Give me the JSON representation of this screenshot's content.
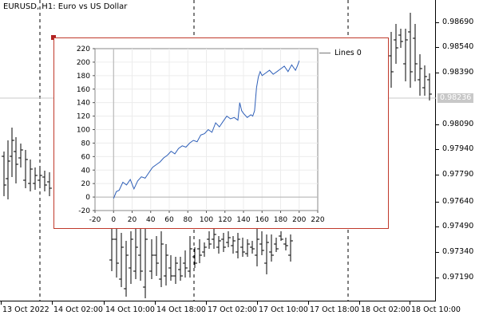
{
  "window": {
    "title": "EURUSD, H1:  Euro vs US Dollar"
  },
  "price_axis": {
    "labels": [
      "0.98690",
      "0.98540",
      "0.98390",
      "0.98236",
      "0.98090",
      "0.97940",
      "0.97790",
      "0.97640",
      "0.97490",
      "0.97340",
      "0.97190"
    ],
    "current_price": "0.98236",
    "current_price_color": "#c8c8c8"
  },
  "time_axis": {
    "labels": [
      "13 Oct 2022",
      "14 Oct 02:00",
      "14 Oct 10:00",
      "14 Oct 18:00",
      "17 Oct 02:00",
      "17 Oct 10:00",
      "17 Oct 18:00",
      "18 Oct 02:00",
      "18 Oct 10:00"
    ]
  },
  "plot": {
    "border_color": "#c0392b",
    "legend": "Lines 0",
    "line_color": "#2e5fb8"
  },
  "chart_data": {
    "type": "line",
    "xlim": [
      -20,
      220
    ],
    "ylim": [
      -20,
      220
    ],
    "xticks": [
      "-20",
      "0",
      "20",
      "40",
      "60",
      "80",
      "100",
      "120",
      "140",
      "160",
      "180",
      "200",
      "220"
    ],
    "yticks": [
      "220",
      "200",
      "180",
      "160",
      "140",
      "120",
      "100",
      "80",
      "60",
      "40",
      "20",
      "0",
      "-20"
    ],
    "grid": true,
    "legend_position": "top-right",
    "series": [
      {
        "name": "Lines 0",
        "x": [
          0,
          3,
          6,
          10,
          14,
          18,
          22,
          26,
          30,
          34,
          38,
          42,
          46,
          50,
          54,
          58,
          62,
          66,
          70,
          74,
          78,
          82,
          86,
          90,
          94,
          98,
          102,
          106,
          110,
          114,
          118,
          122,
          126,
          130,
          134,
          136,
          138,
          140,
          144,
          148,
          150,
          152,
          154,
          156,
          158,
          160,
          164,
          168,
          172,
          176,
          180,
          184,
          188,
          192,
          196,
          198,
          200
        ],
        "y": [
          -2,
          8,
          10,
          22,
          18,
          26,
          12,
          24,
          30,
          28,
          36,
          44,
          48,
          52,
          58,
          62,
          68,
          64,
          72,
          76,
          74,
          80,
          84,
          82,
          92,
          94,
          100,
          96,
          110,
          104,
          112,
          120,
          116,
          118,
          114,
          140,
          128,
          124,
          118,
          122,
          120,
          128,
          162,
          178,
          186,
          180,
          184,
          188,
          182,
          186,
          190,
          194,
          186,
          196,
          188,
          194,
          202
        ]
      }
    ]
  }
}
